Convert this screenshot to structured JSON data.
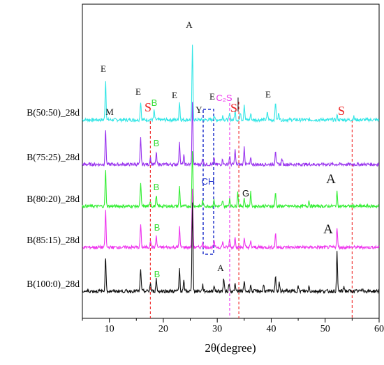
{
  "chart_data": {
    "type": "line",
    "title": "",
    "xlabel": "2θ(degree)",
    "ylabel": "",
    "xlim": [
      5,
      60
    ],
    "x_ticks": [
      10,
      20,
      30,
      40,
      50,
      60
    ],
    "grid": false,
    "legend": "none",
    "series": [
      {
        "name": "B(50:50)_28d",
        "color": "#33e6e6",
        "peaks": [
          [
            9.3,
            13
          ],
          [
            15.8,
            6
          ],
          [
            18.3,
            3
          ],
          [
            23.0,
            6
          ],
          [
            25.4,
            24
          ],
          [
            29.4,
            1.5
          ],
          [
            31.0,
            1.5
          ],
          [
            32.3,
            2
          ],
          [
            33.3,
            3
          ],
          [
            34.3,
            2.5
          ],
          [
            35.0,
            5
          ],
          [
            36.2,
            2
          ],
          [
            39.3,
            2.5
          ],
          [
            40.8,
            6
          ],
          [
            41.4,
            2.5
          ],
          [
            52.2,
            1.5
          ],
          [
            55.3,
            1
          ]
        ]
      },
      {
        "name": "B(75:25)_28d",
        "color": "#9933ee",
        "peaks": [
          [
            9.3,
            12
          ],
          [
            15.8,
            9
          ],
          [
            17.6,
            2.5
          ],
          [
            18.7,
            4
          ],
          [
            23.0,
            8
          ],
          [
            23.8,
            3
          ],
          [
            25.4,
            21
          ],
          [
            27.3,
            2
          ],
          [
            29.4,
            2
          ],
          [
            31.0,
            2
          ],
          [
            32.3,
            3
          ],
          [
            33.3,
            5
          ],
          [
            35.0,
            6
          ],
          [
            36.2,
            2
          ],
          [
            40.8,
            5
          ],
          [
            42.0,
            2
          ]
        ]
      },
      {
        "name": "B(80:20)_28d",
        "color": "#33ee33",
        "peaks": [
          [
            9.3,
            13
          ],
          [
            15.8,
            8
          ],
          [
            17.6,
            2
          ],
          [
            18.7,
            4
          ],
          [
            23.0,
            7
          ],
          [
            25.4,
            20
          ],
          [
            27.3,
            2
          ],
          [
            29.4,
            2
          ],
          [
            31.0,
            2
          ],
          [
            32.3,
            3
          ],
          [
            33.8,
            5
          ],
          [
            35.0,
            3
          ],
          [
            36.2,
            5
          ],
          [
            40.8,
            5
          ],
          [
            47.0,
            2
          ],
          [
            52.2,
            5
          ]
        ]
      },
      {
        "name": "B(85:15)_28d",
        "color": "#ee33ee",
        "peaks": [
          [
            9.3,
            13
          ],
          [
            15.8,
            8
          ],
          [
            17.6,
            2.5
          ],
          [
            18.7,
            4
          ],
          [
            23.0,
            7
          ],
          [
            25.4,
            20
          ],
          [
            27.3,
            2
          ],
          [
            29.4,
            2
          ],
          [
            31.0,
            2
          ],
          [
            32.3,
            3
          ],
          [
            33.3,
            4
          ],
          [
            35.0,
            3
          ],
          [
            36.2,
            2
          ],
          [
            40.8,
            5
          ],
          [
            52.2,
            7
          ]
        ]
      },
      {
        "name": "B(100:0)_28d",
        "color": "#111111",
        "peaks": [
          [
            9.3,
            11
          ],
          [
            15.8,
            7
          ],
          [
            17.6,
            2.5
          ],
          [
            18.7,
            4
          ],
          [
            23.0,
            7
          ],
          [
            23.8,
            3
          ],
          [
            25.4,
            28
          ],
          [
            27.3,
            2
          ],
          [
            29.4,
            2
          ],
          [
            31.2,
            4
          ],
          [
            32.2,
            2.5
          ],
          [
            33.3,
            2
          ],
          [
            35.0,
            3
          ],
          [
            36.2,
            2
          ],
          [
            38.6,
            2
          ],
          [
            40.8,
            5
          ],
          [
            41.5,
            2.5
          ],
          [
            45.0,
            1.5
          ],
          [
            47.0,
            1.5
          ],
          [
            52.2,
            12
          ],
          [
            53.5,
            1.5
          ],
          [
            57.0,
            1
          ]
        ]
      }
    ],
    "phase_lines": [
      {
        "x": 17.6,
        "color": "#ee2222"
      },
      {
        "x": 32.3,
        "color": "#ee33ee"
      },
      {
        "x": 34.0,
        "color": "#ee2222"
      },
      {
        "x": 55.0,
        "color": "#ee2222"
      }
    ],
    "annotations": [
      {
        "text": "A",
        "color": "#111111"
      },
      {
        "text": "E",
        "color": "#111111"
      },
      {
        "text": "E",
        "color": "#111111"
      },
      {
        "text": "E",
        "color": "#111111"
      },
      {
        "text": "E",
        "color": "#111111"
      },
      {
        "text": "E",
        "color": "#111111"
      },
      {
        "text": "M",
        "color": "#111111"
      },
      {
        "text": "S",
        "color": "#ee2222"
      },
      {
        "text": "S",
        "color": "#ee2222"
      },
      {
        "text": "S",
        "color": "#ee2222"
      },
      {
        "text": "B",
        "color": "#33dd33"
      },
      {
        "text": "B",
        "color": "#33dd33"
      },
      {
        "text": "B",
        "color": "#33dd33"
      },
      {
        "text": "B",
        "color": "#33dd33"
      },
      {
        "text": "B",
        "color": "#33dd33"
      },
      {
        "text": "Y",
        "color": "#111111"
      },
      {
        "text": "C₂S",
        "color": "#ee33ee"
      },
      {
        "text": "CH",
        "color": "#2233cc"
      },
      {
        "text": "G",
        "color": "#111111"
      },
      {
        "text": "A",
        "color": "#111111"
      },
      {
        "text": "A",
        "color": "#111111"
      },
      {
        "text": "A",
        "color": "#111111"
      }
    ],
    "ch_box_color": "#2233cc"
  }
}
